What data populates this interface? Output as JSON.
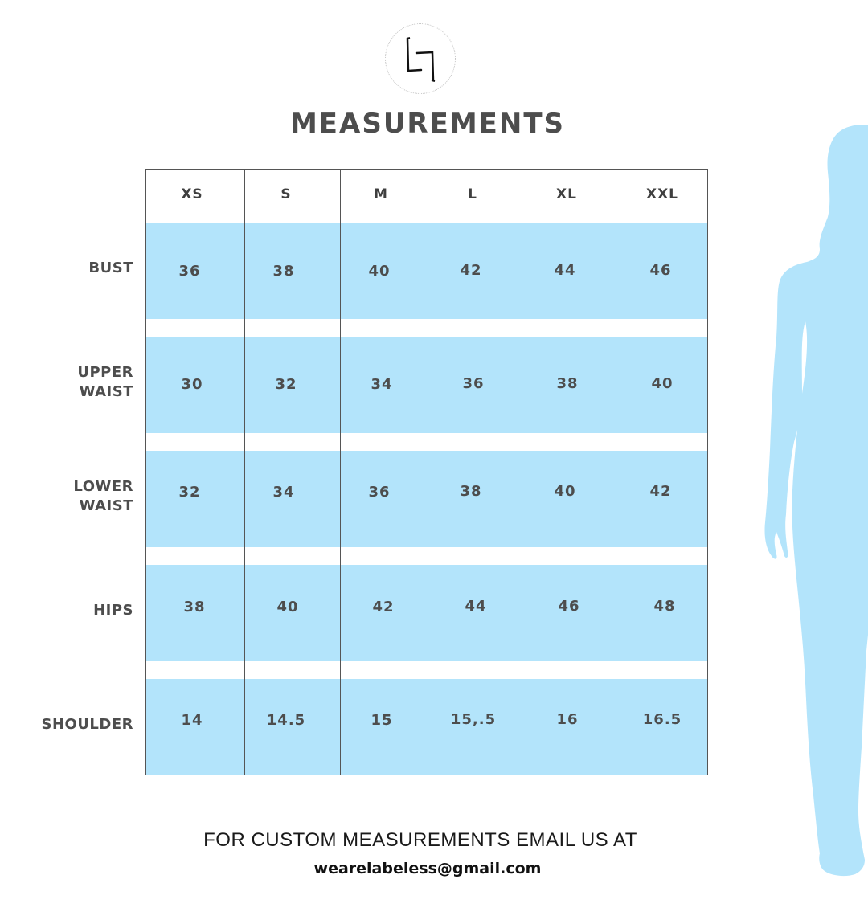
{
  "title": "MEASUREMENTS",
  "sizes": [
    "XS",
    "S",
    "M",
    "L",
    "XL",
    "XXL"
  ],
  "rows": [
    {
      "label_lines": [
        "BUST"
      ],
      "values": [
        "36",
        "38",
        "40",
        "42",
        "44",
        "46"
      ]
    },
    {
      "label_lines": [
        "UPPER",
        "WAIST"
      ],
      "values": [
        "30",
        "32",
        "34",
        "36",
        "38",
        "40"
      ]
    },
    {
      "label_lines": [
        "LOWER",
        "WAIST"
      ],
      "values": [
        "32",
        "34",
        "36",
        "38",
        "40",
        "42"
      ]
    },
    {
      "label_lines": [
        "HIPS"
      ],
      "values": [
        "38",
        "40",
        "42",
        "44",
        "46",
        "48"
      ]
    },
    {
      "label_lines": [
        "SHOULDER"
      ],
      "values": [
        "14",
        "14.5",
        "15",
        "15,.5",
        "16",
        "16.5"
      ]
    }
  ],
  "footer": {
    "text": "FOR CUSTOM MEASUREMENTS EMAIL US AT",
    "email": "wearelabeless@gmail.com"
  },
  "colors": {
    "band": "#b3e4fb",
    "silhouette": "#b3e4fb",
    "text": "#4d4d4d"
  },
  "icons": {
    "logo": "labeless-monogram-logo",
    "figure": "female-silhouette"
  }
}
